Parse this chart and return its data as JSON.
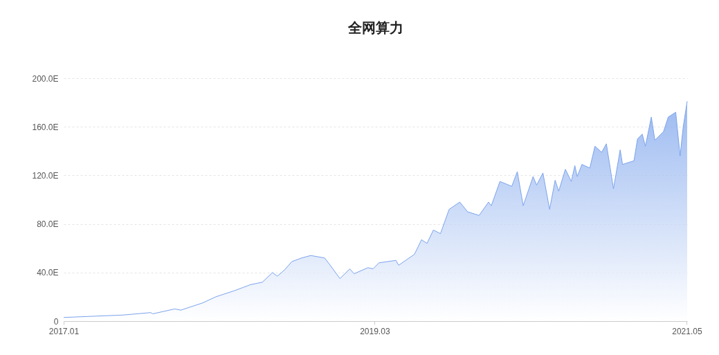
{
  "chart_data": {
    "type": "area",
    "title": "全网算力",
    "x": [
      "2017-01-01",
      "2017-06-01",
      "2017-08-10",
      "2017-08-15",
      "2017-10-10",
      "2017-10-25",
      "2017-12-20",
      "2018-01-22",
      "2018-03-10",
      "2018-04-20",
      "2018-05-20",
      "2018-06-15",
      "2018-06-27",
      "2018-07-15",
      "2018-08-03",
      "2018-08-28",
      "2018-09-20",
      "2018-10-25",
      "2018-11-06",
      "2018-12-03",
      "2018-12-28",
      "2019-01-08",
      "2019-02-12",
      "2019-02-25",
      "2019-03-12",
      "2019-04-24",
      "2019-05-01",
      "2019-06-10",
      "2019-06-28",
      "2019-07-12",
      "2019-07-28",
      "2019-08-15",
      "2019-09-06",
      "2019-10-03",
      "2019-10-23",
      "2019-11-21",
      "2019-12-15",
      "2019-12-22",
      "2020-01-13",
      "2020-02-12",
      "2020-02-26",
      "2020-03-12",
      "2020-04-06",
      "2020-04-15",
      "2020-05-01",
      "2020-05-18",
      "2020-06-01",
      "2020-06-10",
      "2020-06-27",
      "2020-07-12",
      "2020-07-21",
      "2020-07-27",
      "2020-08-08",
      "2020-08-28",
      "2020-09-10",
      "2020-09-27",
      "2020-10-09",
      "2020-10-27",
      "2020-11-13",
      "2020-11-19",
      "2020-12-18",
      "2020-12-27",
      "2021-01-08",
      "2021-01-16",
      "2021-01-31",
      "2021-02-09",
      "2021-03-03",
      "2021-03-15",
      "2021-04-03",
      "2021-04-14",
      "2021-04-22",
      "2021-05-02"
    ],
    "series": [
      {
        "color": "#7ba3ec",
        "values": [
          3,
          5,
          7,
          6,
          10,
          9,
          15,
          20,
          25,
          30,
          32,
          40,
          37,
          42,
          49,
          52,
          54,
          52,
          47,
          35,
          43,
          39,
          44,
          43,
          48,
          50,
          46,
          55,
          67,
          64,
          75,
          72,
          92,
          98,
          90,
          87,
          98,
          95,
          115,
          111,
          123,
          95,
          119,
          112,
          122,
          92,
          116,
          107,
          125,
          115,
          128,
          119,
          129,
          126,
          144,
          139,
          146,
          109,
          141,
          129,
          132,
          150,
          154,
          144,
          168,
          149,
          156,
          168,
          172,
          136,
          160,
          181
        ]
      }
    ],
    "xlim": [
      "2017-01-01",
      "2021-05-02"
    ],
    "xticks": [
      {
        "value": "2017-01-01",
        "label": "2017.01"
      },
      {
        "value": "2019-03-01",
        "label": "2019.03"
      },
      {
        "value": "2021-05-01",
        "label": "2021.05"
      }
    ],
    "ylim": [
      0,
      200
    ],
    "yticks": [
      {
        "value": 0,
        "label": "0"
      },
      {
        "value": 40,
        "label": "40.0E"
      },
      {
        "value": 80,
        "label": "80.0E"
      },
      {
        "value": 120,
        "label": "120.0E"
      },
      {
        "value": 160,
        "label": "160.0E"
      },
      {
        "value": 200,
        "label": "200.0E"
      }
    ],
    "grid": "y"
  }
}
